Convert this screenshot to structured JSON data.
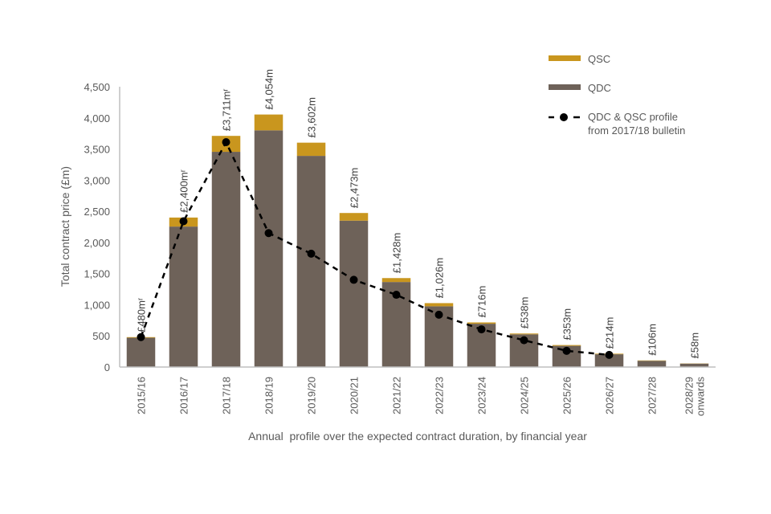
{
  "chart_data": {
    "type": "bar",
    "stacked": true,
    "title": "",
    "xlabel": "Annual  profile over the expected contract duration, by financial year",
    "ylabel": "Total contract price (£m)",
    "ylim": [
      0,
      4500
    ],
    "yticks": [
      0,
      500,
      1000,
      1500,
      2000,
      2500,
      3000,
      3500,
      4000,
      4500
    ],
    "ytick_labels": [
      "0",
      "500",
      "1,000",
      "1,500",
      "2,000",
      "2,500",
      "3,000",
      "3,500",
      "4,000",
      "4,500"
    ],
    "grid": false,
    "legend_position": "top-right",
    "categories": [
      "2015/16",
      "2016/17",
      "2017/18",
      "2018/19",
      "2019/20",
      "2020/21",
      "2021/22",
      "2022/23",
      "2023/24",
      "2024/25",
      "2025/26",
      "2026/27",
      "2027/28",
      "2028/29 onwards"
    ],
    "category_lines": [
      [
        "2015/16"
      ],
      [
        "2016/17"
      ],
      [
        "2017/18"
      ],
      [
        "2018/19"
      ],
      [
        "2019/20"
      ],
      [
        "2020/21"
      ],
      [
        "2021/22"
      ],
      [
        "2022/23"
      ],
      [
        "2023/24"
      ],
      [
        "2024/25"
      ],
      [
        "2025/26"
      ],
      [
        "2026/27"
      ],
      [
        "2027/28"
      ],
      [
        "2028/29",
        "onwards"
      ]
    ],
    "series": [
      {
        "name": "QDC",
        "kind": "bar",
        "color": "#6E6259",
        "values": [
          470,
          2255,
          3455,
          3800,
          3390,
          2350,
          1365,
          975,
          695,
          525,
          340,
          205,
          100,
          55
        ]
      },
      {
        "name": "QSC",
        "kind": "bar",
        "color": "#C9961E",
        "values": [
          10,
          145,
          256,
          254,
          212,
          123,
          63,
          51,
          21,
          13,
          13,
          9,
          6,
          3
        ]
      },
      {
        "name": "QDC & QSC profile from 2017/18 bulletin",
        "kind": "line",
        "color": "#000000",
        "values": [
          480,
          2340,
          3610,
          2150,
          1820,
          1400,
          1160,
          840,
          605,
          430,
          260,
          195,
          null,
          null
        ]
      }
    ],
    "totals": [
      480,
      2400,
      3711,
      4054,
      3602,
      2473,
      1428,
      1026,
      716,
      538,
      353,
      214,
      106,
      58
    ],
    "data_labels": [
      "£480mʳ",
      "£2,400mʳ",
      "£3,711mʳ",
      "£4,054m",
      "£3,602m",
      "£2,473m",
      "£1,428m",
      "£1,026m",
      "£716m",
      "£538m",
      "£353m",
      "£214m",
      "£106m",
      "£58m"
    ],
    "legend": [
      {
        "name": "QSC",
        "symbol": "bar",
        "color": "#C9961E"
      },
      {
        "name": "QDC",
        "symbol": "bar",
        "color": "#6E6259"
      },
      {
        "name": "QDC & QSC profile",
        "name_line2": "from 2017/18 bulletin",
        "symbol": "dashed-line-dot",
        "color": "#000000"
      }
    ]
  }
}
